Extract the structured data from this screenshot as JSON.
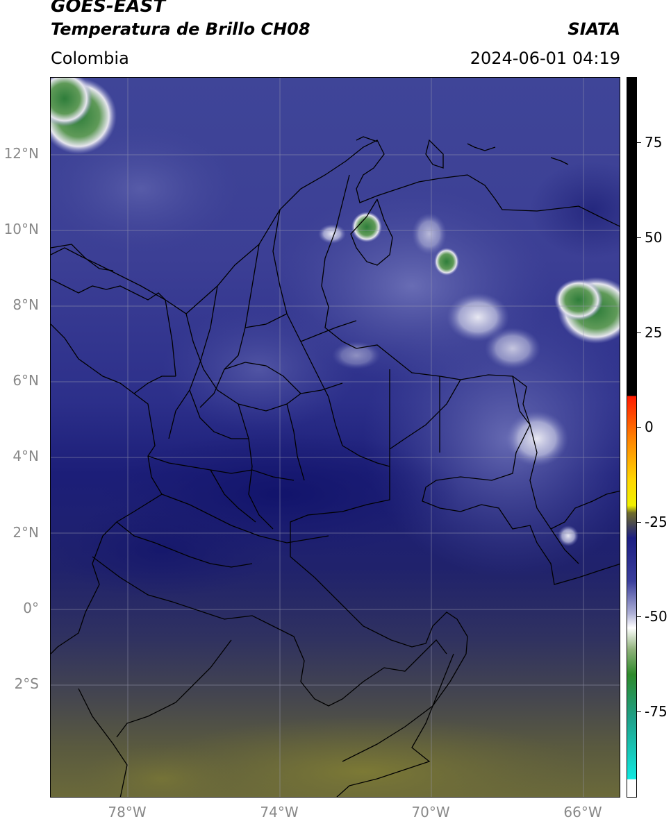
{
  "header": {
    "satellite": "GOES-EAST",
    "product": "Temperatura de Brillo CH08",
    "organization": "SIATA",
    "region": "Colombia",
    "timestamp": "2024-06-01 04:19"
  },
  "map": {
    "lat_labels": [
      "12°N",
      "10°N",
      "8°N",
      "6°N",
      "4°N",
      "2°N",
      "0°",
      "2°S"
    ],
    "lon_labels": [
      "78°W",
      "74°W",
      "70°W",
      "66°W"
    ]
  },
  "colorbar": {
    "labels": [
      "75",
      "50",
      "25",
      "0",
      "-25",
      "-50",
      "-75"
    ]
  }
}
